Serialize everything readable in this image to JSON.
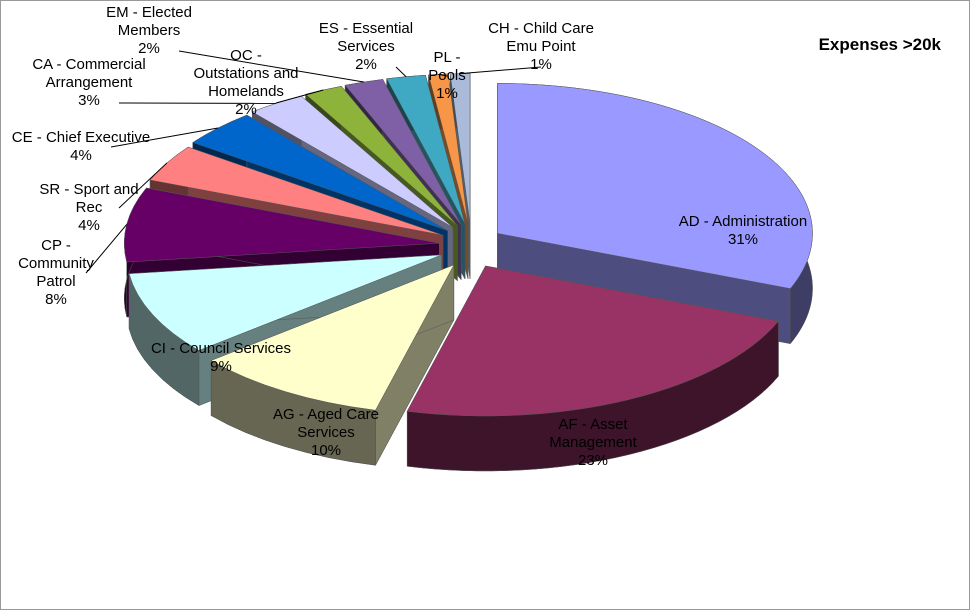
{
  "chart_data": {
    "type": "pie",
    "title": "Expenses >20k",
    "categories": [
      "AD - Administration",
      "AF - Asset Management",
      "AG - Aged Care Services",
      "CI - Council Services",
      "CP - Community Patrol",
      "SR - Sport and Rec",
      "CE - Chief Executive",
      "CA - Commercial Arrangement",
      "OC - Outstations and Homelands",
      "EM - Elected Members",
      "ES - Essential Services",
      "PL - Pools",
      "CH - Child Care Emu Point"
    ],
    "values": [
      31,
      23,
      10,
      9,
      8,
      4,
      4,
      3,
      2,
      2,
      2,
      1,
      1
    ],
    "value_labels": [
      "31%",
      "23%",
      "10%",
      "9%",
      "8%",
      "4%",
      "4%",
      "3%",
      "2%",
      "2%",
      "2%",
      "1%",
      "1%"
    ],
    "colors": [
      "#9999ff",
      "#993366",
      "#ffffcc",
      "#ccffff",
      "#660066",
      "#ff8080",
      "#0066cc",
      "#ccccff",
      "#8db33a",
      "#7f5fa5",
      "#3fa9c4",
      "#f79646",
      "#a9bbd9"
    ]
  }
}
